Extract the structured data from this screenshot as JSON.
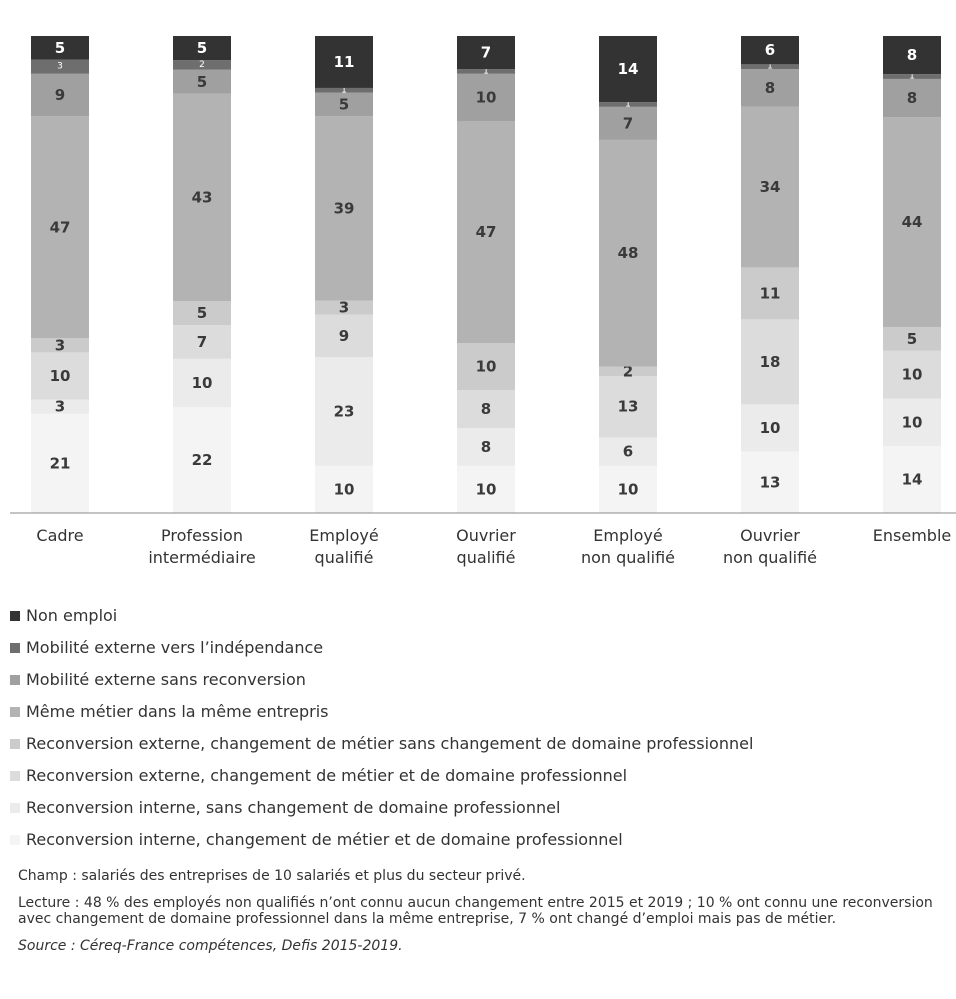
{
  "chart_data": {
    "type": "bar",
    "stacked": true,
    "percent": true,
    "categories": [
      "Cadre",
      "Profession intermédiaire",
      "Employé qualifié",
      "Ouvrier qualifié",
      "Employé non qualifié",
      "Ouvrier non qualifié",
      "Ensemble"
    ],
    "category_lines": [
      [
        "Cadre"
      ],
      [
        "Profession",
        "intermédiaire"
      ],
      [
        "Employé",
        "qualifié"
      ],
      [
        "Ouvrier",
        "qualifié"
      ],
      [
        "Employé",
        "non qualifié"
      ],
      [
        "Ouvrier",
        "non qualifié"
      ],
      [
        "Ensemble"
      ]
    ],
    "series": [
      {
        "name": "Reconversion interne, changement de métier et de domaine professionnel",
        "color": "#f4f4f4",
        "values": [
          21,
          22,
          10,
          10,
          10,
          13,
          14
        ]
      },
      {
        "name": "Reconversion interne, sans changement de domaine professionnel",
        "color": "#ebebeb",
        "values": [
          3,
          10,
          23,
          8,
          6,
          10,
          10
        ]
      },
      {
        "name": "Reconversion externe, changement de métier et de domaine professionnel",
        "color": "#dcdcdc",
        "values": [
          10,
          7,
          9,
          8,
          13,
          18,
          10
        ]
      },
      {
        "name": "Reconversion externe, changement de métier sans changement de domaine professionnel",
        "color": "#cbcbcb",
        "values": [
          3,
          5,
          3,
          10,
          2,
          11,
          5
        ]
      },
      {
        "name": "Même métier dans la même entrepris",
        "color": "#b3b3b3",
        "values": [
          47,
          43,
          39,
          47,
          48,
          34,
          44
        ]
      },
      {
        "name": "Mobilité externe sans reconversion",
        "color": "#a0a0a0",
        "values": [
          9,
          5,
          5,
          10,
          7,
          8,
          8
        ]
      },
      {
        "name": "Mobilité externe vers l’indépendance",
        "color": "#6e6e6e",
        "values": [
          3,
          2,
          1,
          1,
          1,
          1,
          1
        ]
      },
      {
        "name": "Non emploi",
        "color": "#333333",
        "values": [
          5,
          5,
          11,
          7,
          14,
          6,
          8
        ]
      }
    ],
    "ylim": [
      0,
      100
    ],
    "grid": false,
    "legend_position": "bottom"
  },
  "notes": {
    "champ": "Champ : salariés des entreprises de 10 salariés et plus du secteur privé.",
    "lecture": "Lecture : 48 % des employés non qualifiés n’ont connu aucun changement entre 2015 et 2019 ; 10 % ont connu une reconversion avec changement de domaine professionnel dans la même entreprise, 7 % ont changé d’emploi mais pas de métier.",
    "source": "Source : Céreq-France compétences, Defis 2015-2019."
  }
}
